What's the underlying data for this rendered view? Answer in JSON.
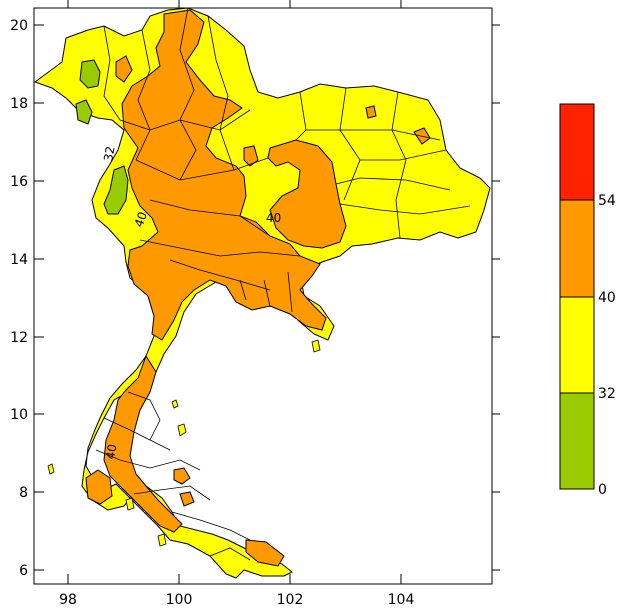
{
  "map": {
    "x_ticks": [
      "98",
      "100",
      "102",
      "104"
    ],
    "y_ticks": [
      "20",
      "18",
      "16",
      "14",
      "12",
      "10",
      "8",
      "6"
    ],
    "contour_labels": [
      "32",
      "40",
      "40",
      "40"
    ]
  },
  "legend": {
    "classes": [
      {
        "range": [
          0,
          32
        ],
        "color": "#99cc00"
      },
      {
        "range": [
          32,
          40
        ],
        "color": "#ffff00"
      },
      {
        "range": [
          40,
          54
        ],
        "color": "#ff9900"
      },
      {
        "range": [
          54,
          null
        ],
        "color": "#ff2200"
      }
    ],
    "labels": [
      "54",
      "40",
      "32",
      "0"
    ]
  },
  "colors": {
    "green": "#99cc00",
    "yellow": "#ffff00",
    "orange": "#ff9900",
    "red": "#ff2200",
    "border": "#000000"
  }
}
